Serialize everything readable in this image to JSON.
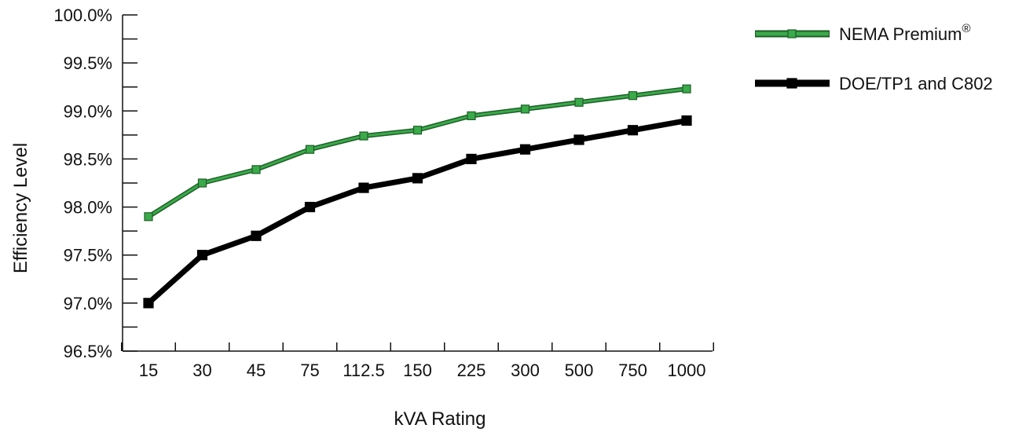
{
  "chart_data": {
    "type": "line",
    "title": "",
    "xlabel": "kVA Rating",
    "ylabel": "Efficiency Level",
    "categories": [
      "15",
      "30",
      "45",
      "75",
      "112.5",
      "150",
      "225",
      "300",
      "500",
      "750",
      "1000"
    ],
    "ylim": [
      96.5,
      100.0
    ],
    "yticks": [
      96.5,
      97.0,
      97.5,
      98.0,
      98.5,
      99.0,
      99.5,
      100.0
    ],
    "ytick_labels": [
      "96.5%",
      "97.0%",
      "97.5%",
      "98.0%",
      "98.5%",
      "99.0%",
      "99.5%",
      "100.0%"
    ],
    "grid": false,
    "legend_position": "top-right",
    "series": [
      {
        "name": "NEMA Premium",
        "name_superscript": "®",
        "values": [
          97.9,
          98.25,
          98.39,
          98.6,
          98.74,
          98.8,
          98.95,
          99.02,
          99.09,
          99.16,
          99.23
        ],
        "color": "#3aaa4a",
        "marker": "square"
      },
      {
        "name": "DOE/TP1 and C802",
        "values": [
          97.0,
          97.5,
          97.7,
          98.0,
          98.2,
          98.3,
          98.5,
          98.6,
          98.7,
          98.8,
          98.9
        ],
        "color": "#000000",
        "marker": "square"
      }
    ]
  }
}
